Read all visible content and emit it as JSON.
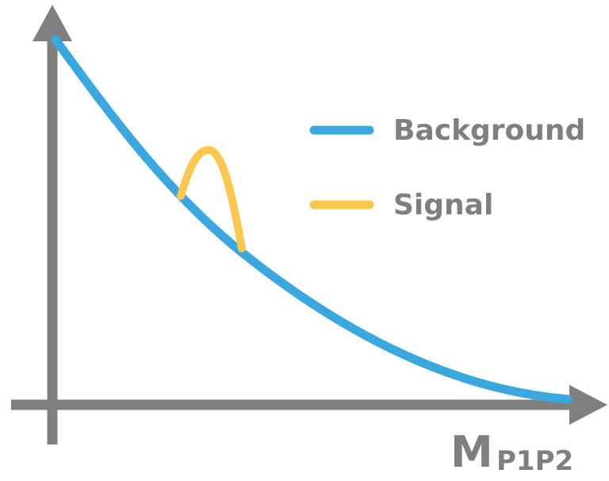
{
  "colors": {
    "axis": "#7f7f80",
    "background_curve": "#3aa7df",
    "signal_curve": "#fbc84f",
    "label": "#7f7f80"
  },
  "legend": {
    "items": [
      {
        "label": "Background",
        "color": "#3aa7df"
      },
      {
        "label": "Signal",
        "color": "#fbc84f"
      }
    ]
  },
  "axis": {
    "x_label_main": "M",
    "x_label_subscript": "P1P2"
  }
}
